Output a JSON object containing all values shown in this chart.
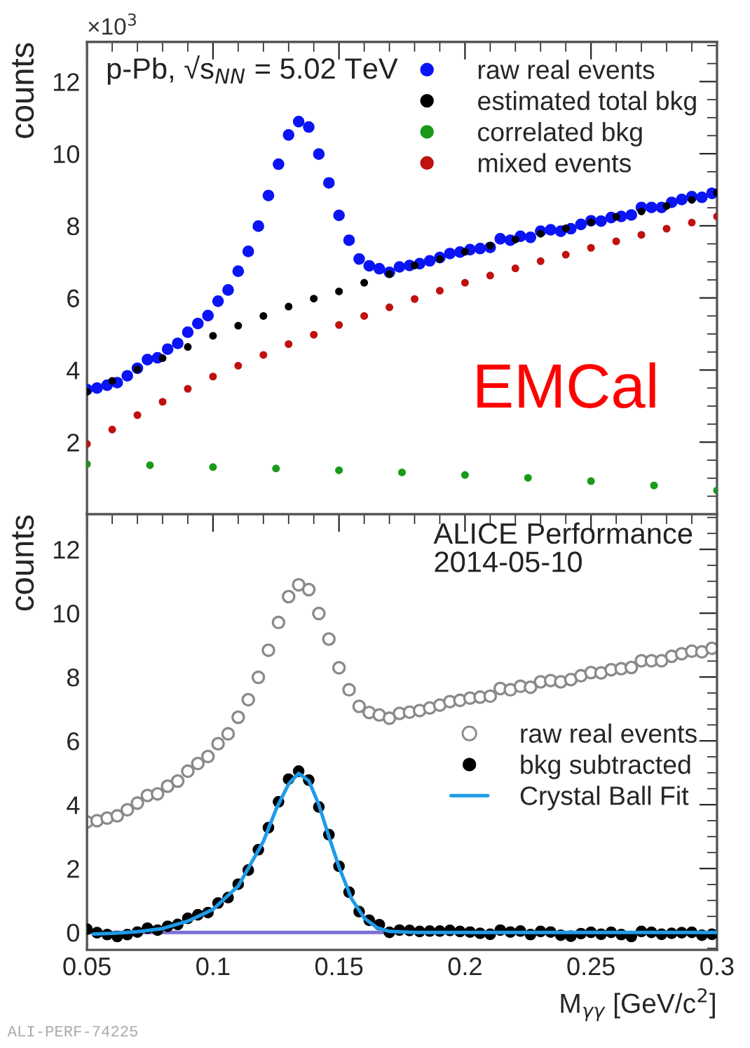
{
  "chart_data": [
    {
      "type": "scatter",
      "ylabel": "counts",
      "xlim": [
        0.05,
        0.3
      ],
      "ylim": [
        0,
        13.1
      ],
      "xticks": [
        {
          "value": 0.05,
          "label": null
        },
        {
          "value": 0.1,
          "label": null
        },
        {
          "value": 0.15,
          "label": null
        },
        {
          "value": 0.2,
          "label": null
        },
        {
          "value": 0.25,
          "label": null
        },
        {
          "value": 0.3,
          "label": null
        }
      ],
      "yticks": [
        2,
        4,
        6,
        8,
        10,
        12
      ],
      "tick_labels": "y",
      "grid": false,
      "legend": "top right",
      "annotations": [
        "×10$^{3}$",
        "p-Pb, √s$_{NN}$ = 5.02 TeV",
        "EMCal"
      ],
      "series": [
        {
          "name": "raw real events",
          "color": "#0a14f5",
          "marker": "circle",
          "x": [
            0.05,
            0.054,
            0.058,
            0.062,
            0.066,
            0.07,
            0.074,
            0.078,
            0.082,
            0.086,
            0.09,
            0.094,
            0.098,
            0.102,
            0.106,
            0.11,
            0.114,
            0.118,
            0.122,
            0.126,
            0.13,
            0.134,
            0.138,
            0.142,
            0.146,
            0.15,
            0.154,
            0.158,
            0.162,
            0.166,
            0.17,
            0.174,
            0.178,
            0.182,
            0.186,
            0.19,
            0.194,
            0.198,
            0.202,
            0.206,
            0.21,
            0.214,
            0.218,
            0.222,
            0.226,
            0.23,
            0.234,
            0.238,
            0.242,
            0.246,
            0.25,
            0.254,
            0.258,
            0.262,
            0.266,
            0.27,
            0.274,
            0.278,
            0.282,
            0.286,
            0.29,
            0.294,
            0.298
          ],
          "values": [
            3.46,
            3.5,
            3.58,
            3.65,
            3.84,
            4.05,
            4.29,
            4.34,
            4.58,
            4.74,
            5.05,
            5.29,
            5.51,
            5.91,
            6.22,
            6.74,
            7.29,
            7.99,
            8.84,
            9.71,
            10.52,
            10.89,
            10.74,
            9.99,
            9.19,
            8.29,
            7.6,
            7.08,
            6.89,
            6.81,
            6.71,
            6.86,
            6.9,
            6.95,
            7.03,
            7.12,
            7.23,
            7.27,
            7.34,
            7.37,
            7.4,
            7.64,
            7.6,
            7.71,
            7.68,
            7.85,
            7.89,
            7.85,
            7.92,
            8.04,
            8.14,
            8.13,
            8.23,
            8.26,
            8.3,
            8.51,
            8.51,
            8.51,
            8.65,
            8.73,
            8.81,
            8.79,
            8.9
          ]
        },
        {
          "name": "estimated total bkg",
          "color": "#000000",
          "marker": "circle",
          "x": [
            0.05,
            0.06,
            0.07,
            0.08,
            0.09,
            0.1,
            0.11,
            0.12,
            0.13,
            0.14,
            0.15,
            0.16,
            0.17,
            0.18,
            0.19,
            0.2,
            0.21,
            0.22,
            0.23,
            0.24,
            0.25,
            0.26,
            0.27,
            0.28,
            0.29,
            0.3
          ],
          "values": [
            3.4,
            3.7,
            4.02,
            4.33,
            4.64,
            4.95,
            5.23,
            5.5,
            5.76,
            5.98,
            6.18,
            6.42,
            6.66,
            6.9,
            7.08,
            7.28,
            7.45,
            7.62,
            7.78,
            7.93,
            8.1,
            8.25,
            8.4,
            8.55,
            8.72,
            8.92
          ]
        },
        {
          "name": "correlated bkg",
          "color": "#1a9a1a",
          "marker": "circle",
          "x": [
            0.05,
            0.075,
            0.1,
            0.125,
            0.15,
            0.175,
            0.2,
            0.225,
            0.25,
            0.275,
            0.3
          ],
          "values": [
            1.39,
            1.36,
            1.31,
            1.27,
            1.22,
            1.16,
            1.09,
            1.01,
            0.92,
            0.8,
            0.66
          ]
        },
        {
          "name": "mixed events",
          "color": "#c01010",
          "marker": "circle",
          "x": [
            0.05,
            0.06,
            0.07,
            0.08,
            0.09,
            0.1,
            0.11,
            0.12,
            0.13,
            0.14,
            0.15,
            0.16,
            0.17,
            0.18,
            0.19,
            0.2,
            0.21,
            0.22,
            0.23,
            0.24,
            0.25,
            0.26,
            0.27,
            0.28,
            0.29,
            0.3
          ],
          "values": [
            1.95,
            2.35,
            2.75,
            3.12,
            3.48,
            3.82,
            4.12,
            4.42,
            4.72,
            4.98,
            5.25,
            5.5,
            5.74,
            5.97,
            6.2,
            6.42,
            6.62,
            6.82,
            7.02,
            7.2,
            7.39,
            7.57,
            7.75,
            7.92,
            8.09,
            8.26
          ]
        }
      ]
    },
    {
      "type": "scatter",
      "ylabel": "counts",
      "xlabel": "M$_{γγ}$ [GeV/c$^{2}$]",
      "xlim": [
        0.05,
        0.3
      ],
      "ylim": [
        -0.55,
        13.1
      ],
      "xticks": [
        0.05,
        0.1,
        0.15,
        0.2,
        0.25,
        0.3
      ],
      "yticks": [
        0,
        2,
        4,
        6,
        8,
        10,
        12
      ],
      "grid": false,
      "legend": "right",
      "annotations": [
        "ALICE Performance",
        "2014-05-10",
        "ALI-PERF-74225"
      ],
      "series": [
        {
          "name": "raw real events",
          "color": "#8a8a8a",
          "marker": "circle",
          "x": [
            0.05,
            0.054,
            0.058,
            0.062,
            0.066,
            0.07,
            0.074,
            0.078,
            0.082,
            0.086,
            0.09,
            0.094,
            0.098,
            0.102,
            0.106,
            0.11,
            0.114,
            0.118,
            0.122,
            0.126,
            0.13,
            0.134,
            0.138,
            0.142,
            0.146,
            0.15,
            0.154,
            0.158,
            0.162,
            0.166,
            0.17,
            0.174,
            0.178,
            0.182,
            0.186,
            0.19,
            0.194,
            0.198,
            0.202,
            0.206,
            0.21,
            0.214,
            0.218,
            0.222,
            0.226,
            0.23,
            0.234,
            0.238,
            0.242,
            0.246,
            0.25,
            0.254,
            0.258,
            0.262,
            0.266,
            0.27,
            0.274,
            0.278,
            0.282,
            0.286,
            0.29,
            0.294,
            0.298
          ],
          "values": [
            3.46,
            3.5,
            3.58,
            3.65,
            3.84,
            4.05,
            4.29,
            4.34,
            4.58,
            4.74,
            5.05,
            5.29,
            5.51,
            5.91,
            6.22,
            6.74,
            7.29,
            7.99,
            8.84,
            9.71,
            10.52,
            10.89,
            10.74,
            9.99,
            9.19,
            8.29,
            7.6,
            7.08,
            6.89,
            6.81,
            6.71,
            6.86,
            6.9,
            6.95,
            7.03,
            7.12,
            7.23,
            7.27,
            7.34,
            7.37,
            7.4,
            7.64,
            7.6,
            7.71,
            7.68,
            7.85,
            7.89,
            7.85,
            7.92,
            8.04,
            8.14,
            8.13,
            8.23,
            8.26,
            8.3,
            8.51,
            8.51,
            8.51,
            8.65,
            8.73,
            8.81,
            8.79,
            8.9
          ]
        },
        {
          "name": "bkg subtracted",
          "color": "#000000",
          "marker": "circle",
          "x": [
            0.05,
            0.054,
            0.058,
            0.062,
            0.066,
            0.07,
            0.074,
            0.078,
            0.082,
            0.086,
            0.09,
            0.094,
            0.098,
            0.102,
            0.106,
            0.11,
            0.114,
            0.118,
            0.122,
            0.126,
            0.13,
            0.134,
            0.138,
            0.142,
            0.146,
            0.15,
            0.154,
            0.158,
            0.162,
            0.166,
            0.17,
            0.174,
            0.178,
            0.182,
            0.186,
            0.19,
            0.194,
            0.198,
            0.202,
            0.206,
            0.21,
            0.214,
            0.218,
            0.222,
            0.226,
            0.23,
            0.234,
            0.238,
            0.242,
            0.246,
            0.25,
            0.254,
            0.258,
            0.262,
            0.266,
            0.27,
            0.274,
            0.278,
            0.282,
            0.286,
            0.29,
            0.294,
            0.298
          ],
          "values": [
            0.1,
            -0.01,
            -0.07,
            -0.13,
            -0.07,
            0.01,
            0.13,
            0.07,
            0.19,
            0.25,
            0.44,
            0.55,
            0.62,
            0.92,
            1.09,
            1.51,
            1.95,
            2.59,
            3.28,
            4.09,
            4.8,
            5.05,
            4.77,
            3.93,
            3.06,
            2.07,
            1.26,
            0.65,
            0.38,
            0.24,
            0.0,
            0.07,
            0.06,
            0.03,
            0.04,
            0.04,
            0.06,
            0.03,
            0.01,
            -0.03,
            -0.06,
            0.07,
            0.01,
            0.04,
            -0.07,
            0.03,
            0.01,
            -0.09,
            -0.12,
            -0.04,
            0.0,
            -0.06,
            0.0,
            -0.07,
            -0.13,
            0.03,
            0.0,
            -0.06,
            -0.03,
            -0.01,
            0.0,
            -0.09,
            -0.06
          ]
        },
        {
          "name": "Crystal Ball Fit",
          "type": "line",
          "color": "#1e9be8",
          "x": [
            0.0525,
            0.06,
            0.07,
            0.08,
            0.09,
            0.1,
            0.11,
            0.12,
            0.125,
            0.13,
            0.134,
            0.138,
            0.142,
            0.146,
            0.15,
            0.155,
            0.16,
            0.165,
            0.17,
            0.18,
            0.3
          ],
          "values": [
            -0.05,
            -0.03,
            0.02,
            0.12,
            0.35,
            0.72,
            1.45,
            2.85,
            3.85,
            4.65,
            4.98,
            4.75,
            4.0,
            3.0,
            2.05,
            1.05,
            0.45,
            0.15,
            0.03,
            0.0,
            0.0
          ]
        },
        {
          "type": "line",
          "color": "#7b6fd6",
          "x": [
            0.05,
            0.17
          ],
          "values": [
            0,
            0
          ]
        }
      ]
    }
  ]
}
